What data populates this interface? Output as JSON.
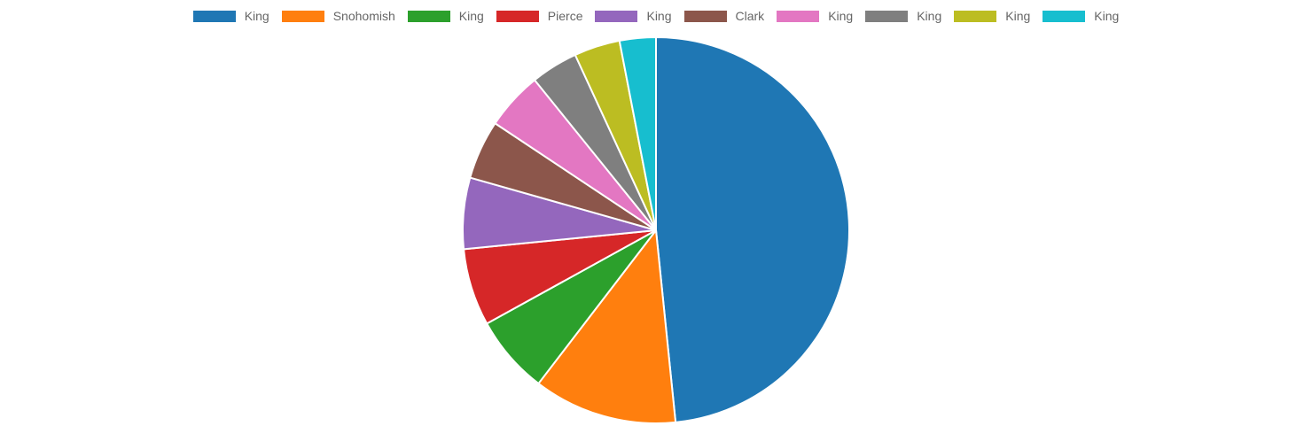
{
  "chart_data": {
    "type": "pie",
    "legend_position": "top",
    "categories": [
      "King",
      "Snohomish",
      "King",
      "Pierce",
      "King",
      "Clark",
      "King",
      "King",
      "King",
      "King"
    ],
    "values": [
      47.9,
      11.9,
      6.5,
      6.4,
      5.9,
      4.9,
      4.8,
      3.9,
      3.8,
      3.0
    ],
    "colors": [
      "#1f77b4",
      "#ff7f0e",
      "#2ca02c",
      "#d62728",
      "#9467bd",
      "#8c564b",
      "#e377c2",
      "#7f7f7f",
      "#bcbd22",
      "#17becf"
    ]
  }
}
